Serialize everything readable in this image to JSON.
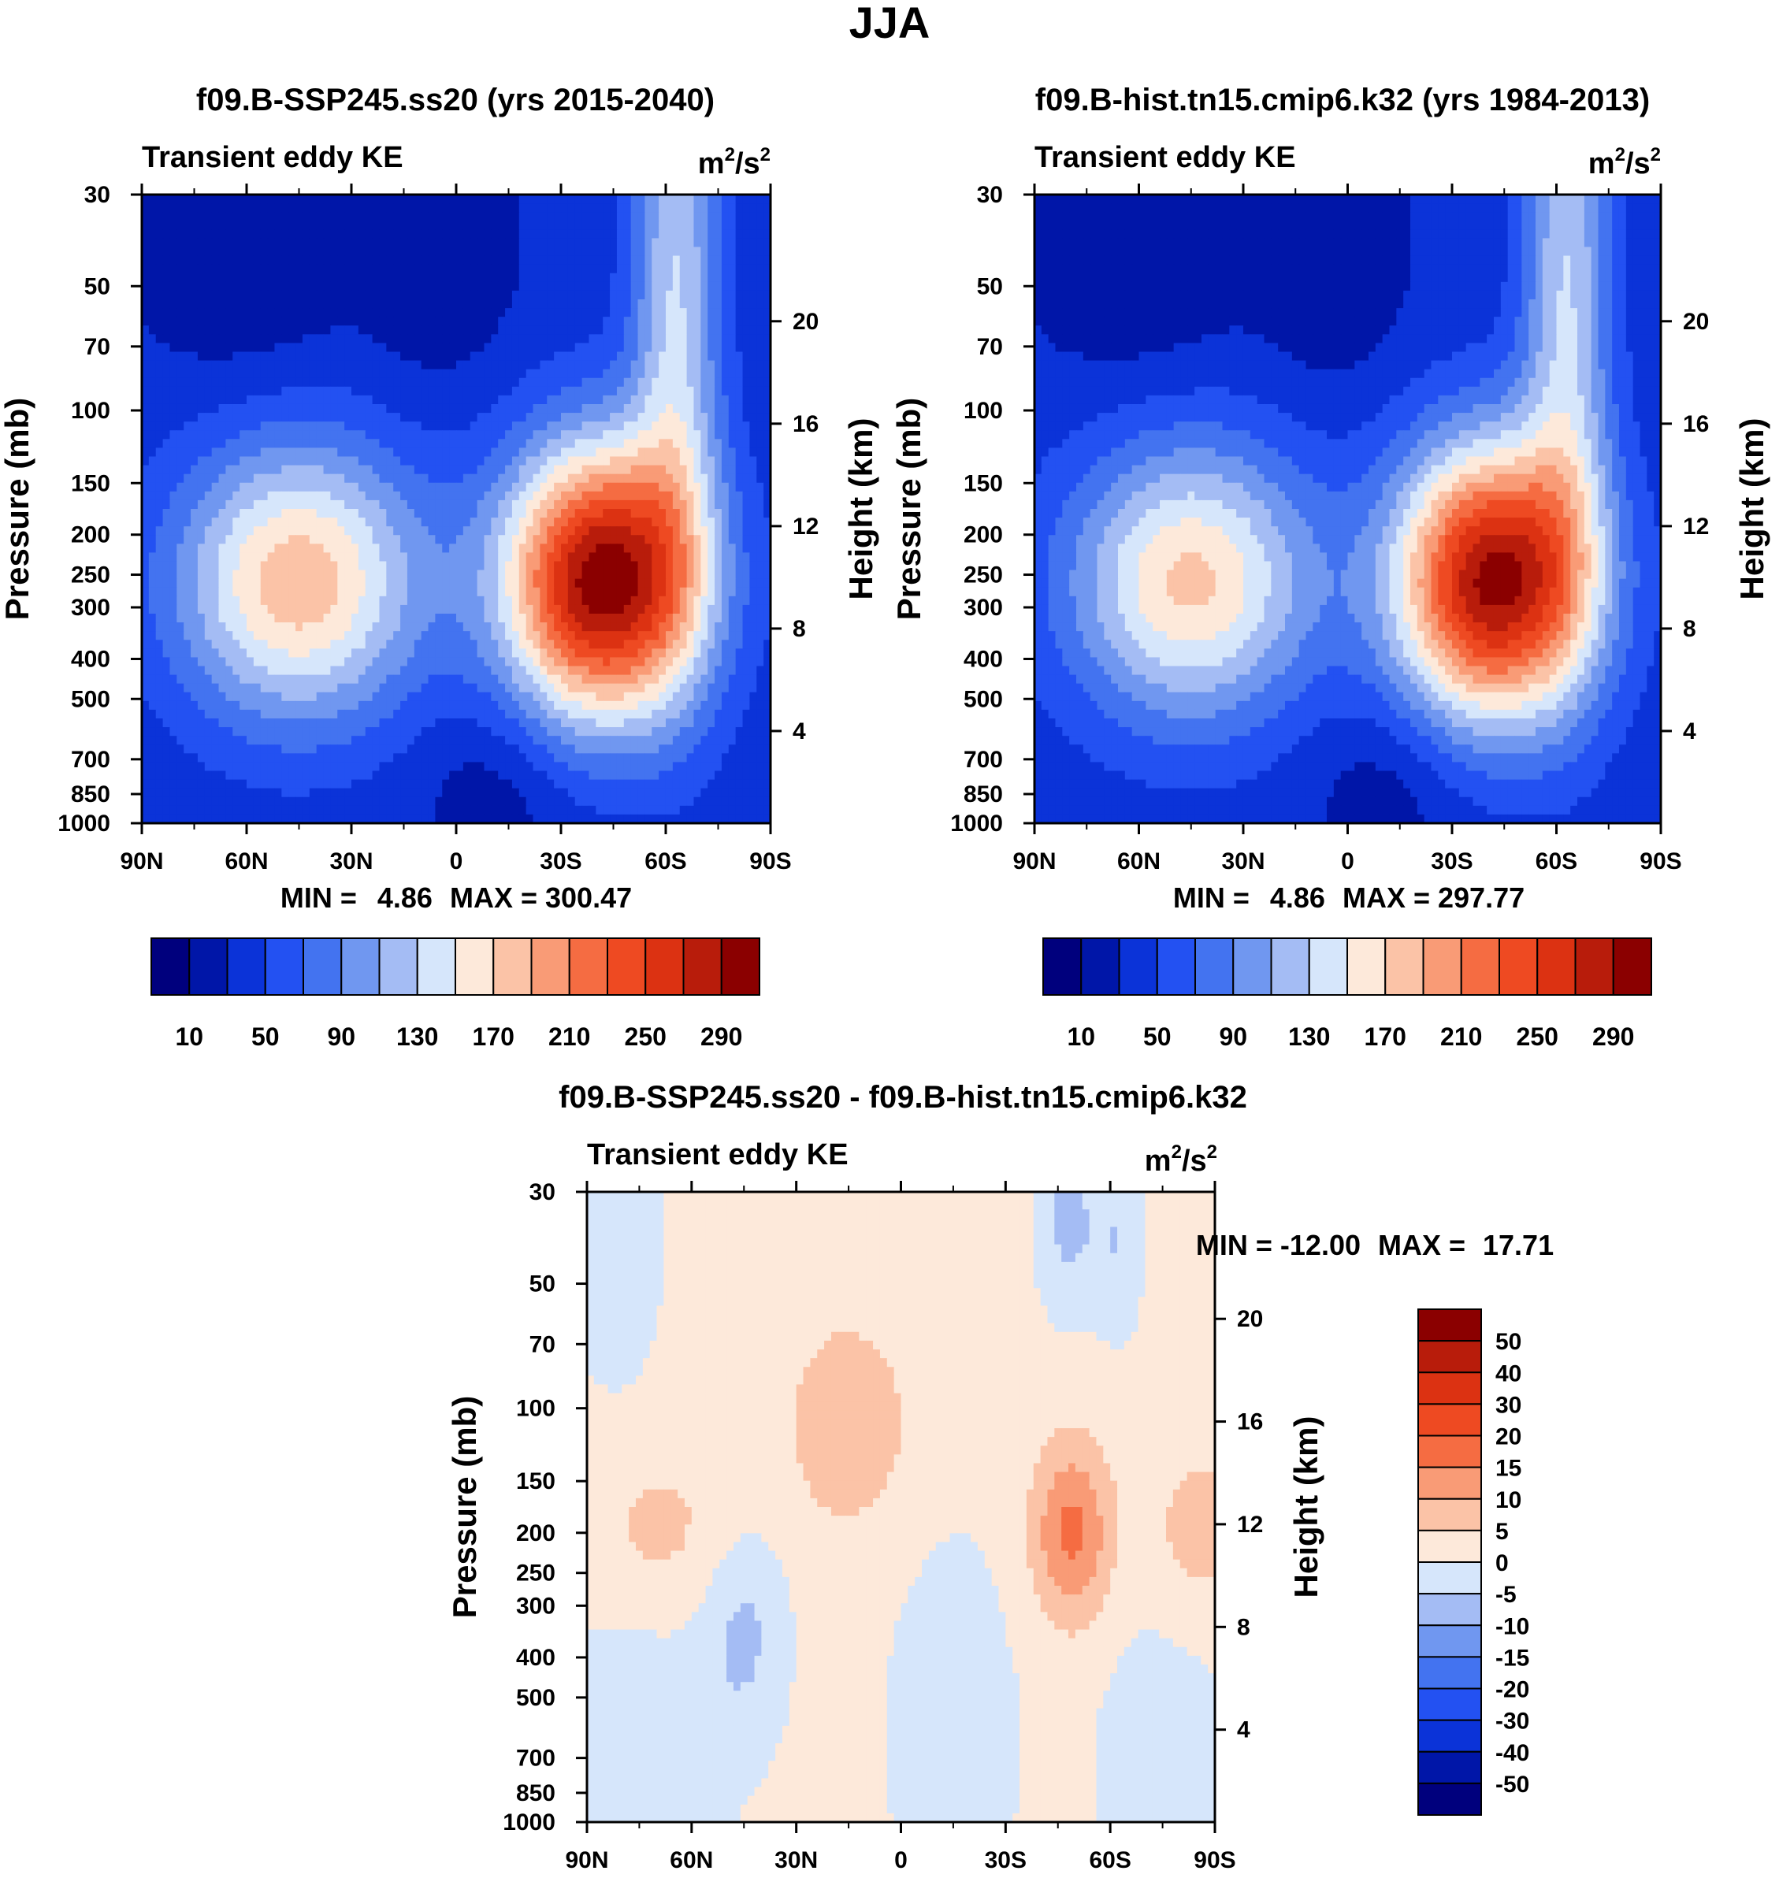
{
  "figure_title": "JJA",
  "colors": {
    "abs_palette": [
      "#00007d",
      "#0016a8",
      "#0b33d8",
      "#2351f2",
      "#4373f0",
      "#7097f0",
      "#a4bcf4",
      "#d6e6fb",
      "#fde9da",
      "#fbc3a7",
      "#f99b76",
      "#f56c42",
      "#ee4a22",
      "#dc3212",
      "#b81c0b",
      "#8b0000"
    ],
    "diff_palette": [
      "#00007d",
      "#0016a8",
      "#0b33d8",
      "#2351f2",
      "#4373f0",
      "#7097f0",
      "#a4bcf4",
      "#d6e6fb",
      "#fde9da",
      "#fbc3a7",
      "#f99b76",
      "#f56c42",
      "#ee4a22",
      "#dc3212",
      "#b81c0b",
      "#8b0000"
    ]
  },
  "chart_data": [
    {
      "id": "ssp245",
      "type": "heatmap",
      "title": "f09.B-SSP245.ss20 (yrs 2015-2040)",
      "left_label": "Transient eddy KE",
      "right_label": "m²/s²",
      "units_base": "m",
      "units_mid": "/s",
      "units_sup": "2",
      "xlabel": "",
      "ylabel": "Pressure (mb)",
      "y2label": "Height (km)",
      "x_ticks": [
        "90N",
        "60N",
        "30N",
        "0",
        "30S",
        "60S",
        "90S"
      ],
      "y_ticks": [
        "30",
        "50",
        "70",
        "100",
        "150",
        "200",
        "250",
        "300",
        "400",
        "500",
        "700",
        "850",
        "1000"
      ],
      "y2_ticks": [
        "20",
        "16",
        "12",
        "8",
        "4"
      ],
      "min_label": "MIN =",
      "min_value": "4.86",
      "max_label": "MAX =",
      "max_value": "300.47",
      "colorbar_labels": [
        "10",
        "50",
        "90",
        "130",
        "170",
        "210",
        "250",
        "290"
      ],
      "field": {
        "background": 35,
        "blobs": [
          {
            "lat": -42,
            "p": 260,
            "sx": 20,
            "sy": 0.55,
            "a": 270
          },
          {
            "lat": 45,
            "p": 260,
            "sx": 25,
            "sy": 0.55,
            "a": 150
          },
          {
            "lat": -63,
            "p": 50,
            "sx": 9,
            "sy": 1.2,
            "a": 95
          },
          {
            "lat": -12,
            "p": 800,
            "sx": 15,
            "sy": 0.35,
            "a": -20
          },
          {
            "lat": 60,
            "p": 40,
            "sx": 20,
            "sy": 0.55,
            "a": -25
          },
          {
            "lat": 5,
            "p": 45,
            "sx": 15,
            "sy": 0.5,
            "a": -20
          }
        ]
      }
    },
    {
      "id": "hist",
      "type": "heatmap",
      "title": "f09.B-hist.tn15.cmip6.k32 (yrs 1984-2013)",
      "left_label": "Transient eddy KE",
      "right_label": "m²/s²",
      "units_base": "m",
      "units_mid": "/s",
      "units_sup": "2",
      "xlabel": "",
      "ylabel": "Pressure (mb)",
      "y2label": "Height (km)",
      "x_ticks": [
        "90N",
        "60N",
        "30N",
        "0",
        "30S",
        "60S",
        "90S"
      ],
      "y_ticks": [
        "30",
        "50",
        "70",
        "100",
        "150",
        "200",
        "250",
        "300",
        "400",
        "500",
        "700",
        "850",
        "1000"
      ],
      "y2_ticks": [
        "20",
        "16",
        "12",
        "8",
        "4"
      ],
      "min_label": "MIN =",
      "min_value": "4.86",
      "max_label": "MAX =",
      "max_value": "297.77",
      "colorbar_labels": [
        "10",
        "50",
        "90",
        "130",
        "170",
        "210",
        "250",
        "290"
      ],
      "field": {
        "background": 35,
        "blobs": [
          {
            "lat": -42,
            "p": 260,
            "sx": 20,
            "sy": 0.55,
            "a": 262
          },
          {
            "lat": 45,
            "p": 260,
            "sx": 25,
            "sy": 0.55,
            "a": 140
          },
          {
            "lat": -63,
            "p": 50,
            "sx": 9,
            "sy": 1.2,
            "a": 95
          },
          {
            "lat": -12,
            "p": 800,
            "sx": 15,
            "sy": 0.35,
            "a": -20
          },
          {
            "lat": 60,
            "p": 40,
            "sx": 20,
            "sy": 0.55,
            "a": -25
          },
          {
            "lat": 5,
            "p": 45,
            "sx": 15,
            "sy": 0.5,
            "a": -20
          }
        ]
      }
    },
    {
      "id": "diff",
      "type": "heatmap",
      "title": "f09.B-SSP245.ss20 - f09.B-hist.tn15.cmip6.k32",
      "left_label": "Transient eddy KE",
      "right_label": "m²/s²",
      "units_base": "m",
      "units_mid": "/s",
      "units_sup": "2",
      "xlabel": "",
      "ylabel": "Pressure (mb)",
      "y2label": "Height (km)",
      "x_ticks": [
        "90N",
        "60N",
        "30N",
        "0",
        "30S",
        "60S",
        "90S"
      ],
      "y_ticks": [
        "30",
        "50",
        "70",
        "100",
        "150",
        "200",
        "250",
        "300",
        "400",
        "500",
        "700",
        "850",
        "1000"
      ],
      "y2_ticks": [
        "20",
        "16",
        "12",
        "8",
        "4"
      ],
      "min_label": "MIN =",
      "min_value": "-12.00",
      "max_label": "MAX =",
      "max_value": "17.71",
      "colorbar_labels": [
        "50",
        "40",
        "30",
        "20",
        "15",
        "10",
        "5",
        "0",
        "-5",
        "-10",
        "-15",
        "-20",
        "-30",
        "-40",
        "-50"
      ],
      "field": {
        "background": 1.5,
        "blobs": [
          {
            "lat": -49,
            "p": 200,
            "sx": 8,
            "sy": 0.35,
            "a": 15
          },
          {
            "lat": 15,
            "p": 110,
            "sx": 12,
            "sy": 0.4,
            "a": 8
          },
          {
            "lat": 70,
            "p": 200,
            "sx": 15,
            "sy": 0.35,
            "a": 6
          },
          {
            "lat": -85,
            "p": 200,
            "sx": 10,
            "sy": 0.35,
            "a": 6
          },
          {
            "lat": -48,
            "p": 35,
            "sx": 6,
            "sy": 0.35,
            "a": -8
          },
          {
            "lat": -62,
            "p": 40,
            "sx": 5,
            "sy": 0.35,
            "a": -6
          },
          {
            "lat": 45,
            "p": 350,
            "sx": 8,
            "sy": 0.4,
            "a": -7
          },
          {
            "lat": 75,
            "p": 600,
            "sx": 20,
            "sy": 0.8,
            "a": -4
          },
          {
            "lat": -15,
            "p": 600,
            "sx": 14,
            "sy": 0.8,
            "a": -4
          },
          {
            "lat": -75,
            "p": 700,
            "sx": 14,
            "sy": 0.7,
            "a": -4
          },
          {
            "lat": 82,
            "p": 40,
            "sx": 10,
            "sy": 0.6,
            "a": -4
          }
        ]
      }
    }
  ]
}
